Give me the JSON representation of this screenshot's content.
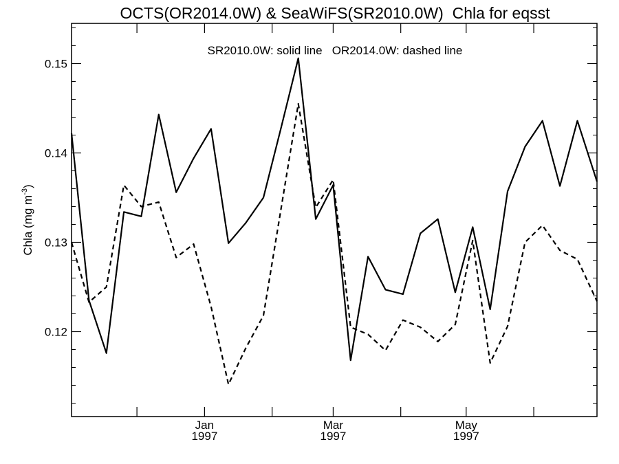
{
  "chart_data": {
    "type": "line",
    "title": "OCTS(OR2014.0W) & SeaWiFS(SR2010.0W)  Chla for eqsst",
    "annotation": "SR2010.0W: solid line   OR2014.0W: dashed line",
    "ylabel": "Chla (mg m",
    "ylabel_sup": "-3",
    "ylim": [
      0.1105,
      0.1545
    ],
    "xlim": [
      "1996-11-01",
      "1997-06-30"
    ],
    "y_ticks": [
      0.12,
      0.13,
      0.14,
      0.15
    ],
    "y_tick_labels": [
      "0.12",
      "0.13",
      "0.14",
      "0.15"
    ],
    "x_ticks": [
      {
        "date": "1997-01-01",
        "month": "Jan",
        "year": "1997"
      },
      {
        "date": "1997-03-01",
        "month": "Mar",
        "year": "1997"
      },
      {
        "date": "1997-05-01",
        "month": "May",
        "year": "1997"
      }
    ],
    "x_minor_ticks": [
      "1996-12-01",
      "1997-02-01",
      "1997-04-01",
      "1997-06-01"
    ],
    "grid": false,
    "series": [
      {
        "name": "SR2010.0W",
        "style": "solid",
        "color": "#000000",
        "x": [
          "1996-11-01",
          "1996-11-09",
          "1996-11-17",
          "1996-11-25",
          "1996-12-03",
          "1996-12-11",
          "1996-12-19",
          "1996-12-27",
          "1997-01-04",
          "1997-01-12",
          "1997-01-20",
          "1997-01-28",
          "1997-02-05",
          "1997-02-13",
          "1997-02-21",
          "1997-03-01",
          "1997-03-09",
          "1997-03-17",
          "1997-03-25",
          "1997-04-02",
          "1997-04-10",
          "1997-04-18",
          "1997-04-26",
          "1997-05-04",
          "1997-05-12",
          "1997-05-20",
          "1997-05-28",
          "1997-06-05",
          "1997-06-13",
          "1997-06-21",
          "1997-06-30"
        ],
        "y": [
          0.1422,
          0.1235,
          0.1176,
          0.1334,
          0.1329,
          0.1443,
          0.1356,
          0.1394,
          0.1427,
          0.1299,
          0.1322,
          0.135,
          0.1427,
          0.1506,
          0.1326,
          0.1364,
          0.1168,
          0.1284,
          0.1247,
          0.1242,
          0.131,
          0.1326,
          0.1244,
          0.1317,
          0.1225,
          0.1357,
          0.1407,
          0.1436,
          0.1363,
          0.1436,
          0.1368
        ]
      },
      {
        "name": "OR2014.0W",
        "style": "dashed",
        "color": "#000000",
        "x": [
          "1996-11-01",
          "1996-11-09",
          "1996-11-17",
          "1996-11-25",
          "1996-12-03",
          "1996-12-11",
          "1996-12-19",
          "1996-12-27",
          "1997-01-04",
          "1997-01-12",
          "1997-01-20",
          "1997-01-28",
          "1997-02-05",
          "1997-02-13",
          "1997-02-21",
          "1997-03-01",
          "1997-03-09",
          "1997-03-17",
          "1997-03-25",
          "1997-04-02",
          "1997-04-10",
          "1997-04-18",
          "1997-04-26",
          "1997-05-04",
          "1997-05-12",
          "1997-05-20",
          "1997-05-28",
          "1997-06-05",
          "1997-06-13",
          "1997-06-21",
          "1997-06-30"
        ],
        "y": [
          0.13,
          0.1233,
          0.125,
          0.1364,
          0.134,
          0.1345,
          0.1283,
          0.1298,
          0.1228,
          0.1141,
          0.1182,
          0.1218,
          0.1336,
          0.1455,
          0.1339,
          0.137,
          0.1205,
          0.1197,
          0.1179,
          0.1213,
          0.1205,
          0.1189,
          0.1208,
          0.1302,
          0.1165,
          0.1206,
          0.13,
          0.1319,
          0.1291,
          0.1281,
          0.1234
        ]
      }
    ]
  }
}
